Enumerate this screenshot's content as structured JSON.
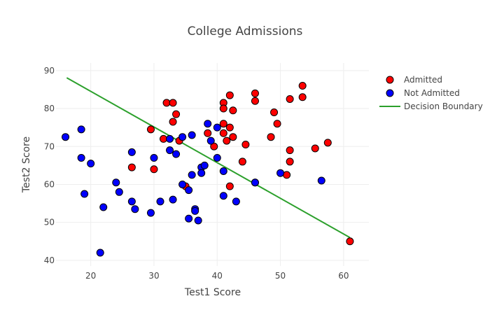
{
  "chart_data": {
    "type": "scatter",
    "title": "College Admissions",
    "xlabel": "Test1 Score",
    "ylabel": "Test2 Score",
    "xlim": [
      14.5,
      64
    ],
    "ylim": [
      38.5,
      92
    ],
    "x_ticks": [
      20,
      30,
      40,
      50,
      60
    ],
    "y_ticks": [
      40,
      50,
      60,
      70,
      80,
      90
    ],
    "grid": true,
    "legend_position": "top-right",
    "series": [
      {
        "name": "Admitted",
        "color": "#ff0000",
        "marker": "circle",
        "points": [
          [
            32,
            81.5
          ],
          [
            33,
            81.5
          ],
          [
            33.5,
            78.5
          ],
          [
            33,
            76.5
          ],
          [
            29.5,
            74.5
          ],
          [
            31.5,
            72
          ],
          [
            34,
            71.5
          ],
          [
            26.5,
            64.5
          ],
          [
            30,
            64
          ],
          [
            35,
            59.5
          ],
          [
            38.5,
            73.5
          ],
          [
            39.5,
            70
          ],
          [
            41,
            81.5
          ],
          [
            42,
            83.5
          ],
          [
            41,
            80
          ],
          [
            42.5,
            79.5
          ],
          [
            41,
            76
          ],
          [
            42,
            75
          ],
          [
            41,
            73.5
          ],
          [
            42.5,
            72.5
          ],
          [
            41.5,
            71.5
          ],
          [
            44.5,
            70.5
          ],
          [
            44,
            66
          ],
          [
            42,
            59.5
          ],
          [
            46,
            60.5
          ],
          [
            46,
            84
          ],
          [
            46,
            82
          ],
          [
            49,
            79
          ],
          [
            49.5,
            76
          ],
          [
            48.5,
            72.5
          ],
          [
            51.5,
            82.5
          ],
          [
            53.5,
            86
          ],
          [
            53.5,
            83
          ],
          [
            51.5,
            69
          ],
          [
            51.5,
            66
          ],
          [
            51,
            62.5
          ],
          [
            55.5,
            69.5
          ],
          [
            57.5,
            71
          ],
          [
            61,
            45
          ]
        ]
      },
      {
        "name": "Not Admitted",
        "color": "#0000ff",
        "marker": "circle",
        "points": [
          [
            16,
            72.5
          ],
          [
            18.5,
            74.5
          ],
          [
            18.5,
            67
          ],
          [
            20,
            65.5
          ],
          [
            19,
            57.5
          ],
          [
            22,
            54
          ],
          [
            21.5,
            42
          ],
          [
            24,
            60.5
          ],
          [
            24.5,
            58
          ],
          [
            26.5,
            68.5
          ],
          [
            26.5,
            55.5
          ],
          [
            27,
            53.5
          ],
          [
            29.5,
            52.5
          ],
          [
            30,
            67
          ],
          [
            31,
            55.5
          ],
          [
            32.5,
            69
          ],
          [
            32.5,
            72
          ],
          [
            33.5,
            68
          ],
          [
            34.5,
            72.5
          ],
          [
            33,
            56
          ],
          [
            34.5,
            60
          ],
          [
            35.5,
            58.5
          ],
          [
            35.5,
            51
          ],
          [
            36.5,
            53.5
          ],
          [
            36.5,
            53
          ],
          [
            37,
            50.5
          ],
          [
            36,
            62.5
          ],
          [
            36,
            73
          ],
          [
            37.5,
            64.5
          ],
          [
            37.5,
            63
          ],
          [
            38,
            65
          ],
          [
            38.5,
            76
          ],
          [
            39,
            71.5
          ],
          [
            40,
            75
          ],
          [
            40,
            67
          ],
          [
            41,
            63.5
          ],
          [
            41,
            57
          ],
          [
            43,
            55.5
          ],
          [
            46,
            60.5
          ],
          [
            50,
            63
          ],
          [
            56.5,
            61
          ]
        ]
      },
      {
        "name": "Decision Boundary",
        "color": "#2ca02c",
        "marker": "line",
        "points": [
          [
            16.2,
            88.1
          ],
          [
            61,
            46
          ]
        ]
      }
    ]
  }
}
